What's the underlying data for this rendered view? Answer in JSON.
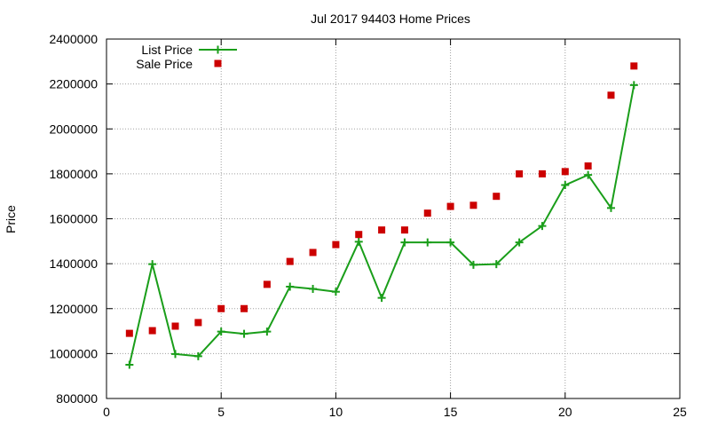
{
  "chart_data": {
    "type": "line",
    "title": "Jul 2017 94403 Home Prices",
    "xlabel": "",
    "ylabel": "Price",
    "xlim": [
      0,
      25
    ],
    "ylim": [
      800000,
      2400000
    ],
    "xticks": [
      0,
      5,
      10,
      15,
      20,
      25
    ],
    "yticks": [
      800000,
      1000000,
      1200000,
      1400000,
      1600000,
      1800000,
      2000000,
      2200000,
      2400000
    ],
    "grid": true,
    "legend_position": "top-left",
    "series": [
      {
        "name": "List Price",
        "style": "line-plus",
        "color": "#1a9e1a",
        "x": [
          1,
          2,
          3,
          4,
          5,
          6,
          7,
          8,
          9,
          10,
          11,
          12,
          13,
          14,
          15,
          16,
          17,
          18,
          19,
          20,
          21,
          22,
          23
        ],
        "values": [
          950000,
          1398000,
          998000,
          988000,
          1098000,
          1088000,
          1098000,
          1298000,
          1288000,
          1275000,
          1498000,
          1248000,
          1495000,
          1495000,
          1495000,
          1395000,
          1398000,
          1495000,
          1568000,
          1750000,
          1795000,
          1648000,
          2195000
        ]
      },
      {
        "name": "Sale Price",
        "style": "square-points",
        "color": "#cc0000",
        "x": [
          1,
          2,
          3,
          4,
          5,
          6,
          7,
          8,
          9,
          10,
          11,
          12,
          13,
          14,
          15,
          16,
          17,
          18,
          19,
          20,
          21,
          22,
          23
        ],
        "values": [
          1090000,
          1102000,
          1122000,
          1138000,
          1200000,
          1200000,
          1308000,
          1410000,
          1450000,
          1485000,
          1530000,
          1550000,
          1550000,
          1625000,
          1655000,
          1660000,
          1700000,
          1800000,
          1800000,
          1810000,
          1835000,
          2150000,
          2280000
        ]
      }
    ]
  }
}
